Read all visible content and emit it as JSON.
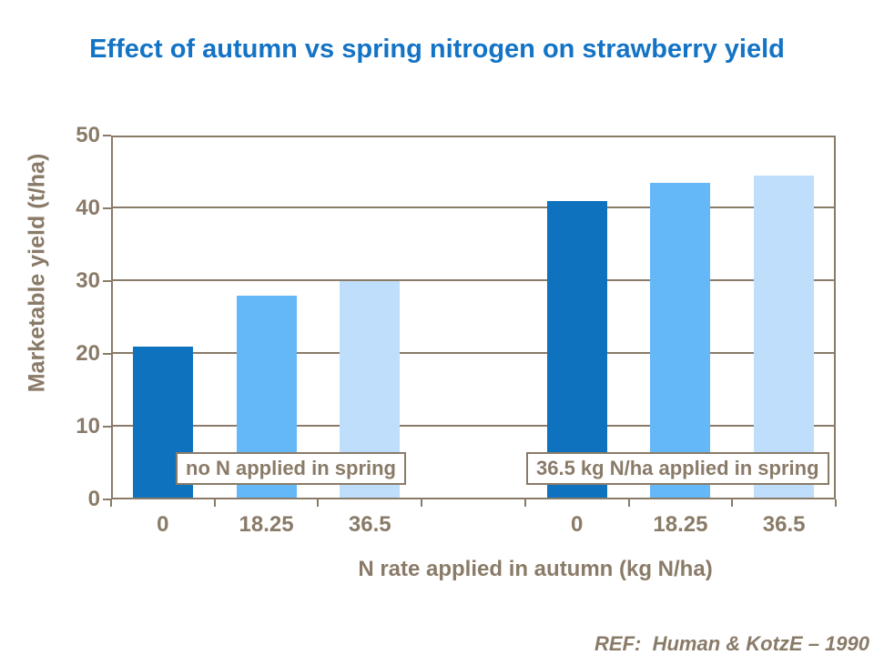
{
  "chart_data": {
    "type": "bar",
    "title": "Effect of autumn vs spring nitrogen on strawberry yield",
    "xlabel": "N rate applied in autumn (kg N/ha)",
    "ylabel": "Marketable yield (t/ha)",
    "ylim": [
      0,
      50
    ],
    "yticks": [
      0,
      10,
      20,
      30,
      40,
      50
    ],
    "grid": "horizontal",
    "legend": "none",
    "groups": [
      {
        "label": "no N applied in spring",
        "categories": [
          "0",
          "18.25",
          "36.5"
        ],
        "values": [
          21,
          28,
          30
        ]
      },
      {
        "label": "36.5 kg N/ha applied in spring",
        "categories": [
          "0",
          "18.25",
          "36.5"
        ],
        "values": [
          41,
          43.5,
          44.5
        ]
      }
    ],
    "bar_colors": [
      "#0f72be",
      "#65b8f8",
      "#bedefb"
    ],
    "axis_color": "#8a7b68",
    "title_color": "#1373c5"
  },
  "footer": {
    "ref": "REF:  Human & KotzE – 1990"
  }
}
